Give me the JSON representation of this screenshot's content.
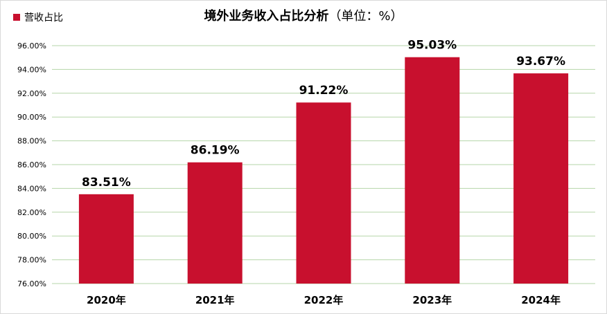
{
  "legend": {
    "label": "营收占比",
    "color": "#c8102e"
  },
  "title": {
    "main": "境外业务收入占比分析",
    "unit": "（单位：%）"
  },
  "chart_data": {
    "type": "bar",
    "title": "境外业务收入占比分析（单位：%）",
    "categories": [
      "2020年",
      "2021年",
      "2022年",
      "2023年",
      "2024年"
    ],
    "series": [
      {
        "name": "营收占比",
        "values": [
          83.51,
          86.19,
          91.22,
          95.03,
          93.67
        ],
        "color": "#c8102e"
      }
    ],
    "data_labels": [
      "83.51%",
      "86.19%",
      "91.22%",
      "95.03%",
      "93.67%"
    ],
    "yticks": [
      76,
      78,
      80,
      82,
      84,
      86,
      88,
      90,
      92,
      94,
      96
    ],
    "ytick_labels": [
      "76.00%",
      "78.00%",
      "80.00%",
      "82.00%",
      "84.00%",
      "86.00%",
      "88.00%",
      "90.00%",
      "92.00%",
      "94.00%",
      "96.00%"
    ],
    "ylim": [
      76,
      96
    ],
    "grid": true,
    "gridline_color": "#b5d6a8",
    "legend_position": "top-left"
  }
}
